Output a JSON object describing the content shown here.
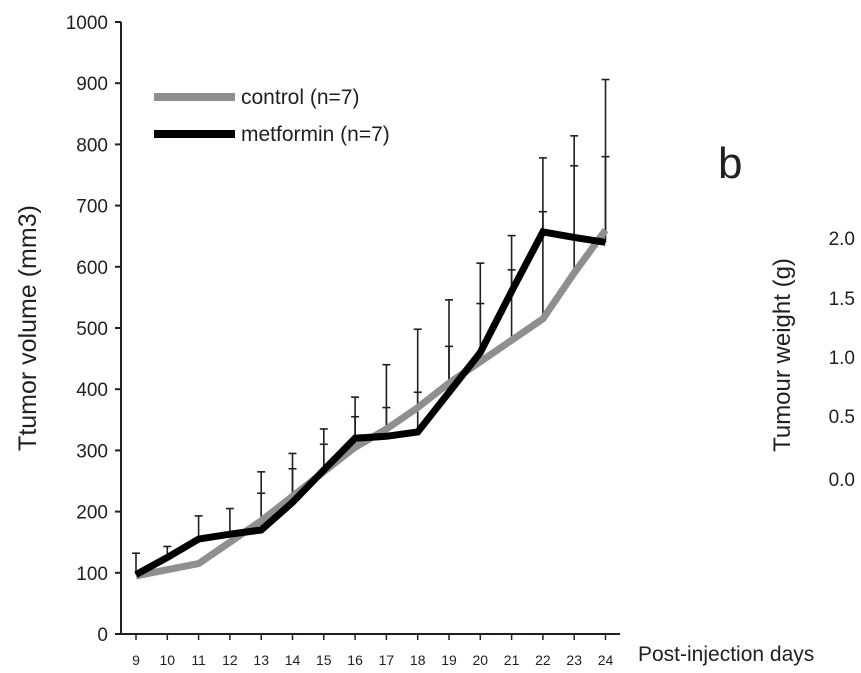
{
  "chart_data": [
    {
      "type": "line",
      "title": "",
      "xlabel": "Post-injection days",
      "ylabel": "Ttumor volume (mm3)",
      "x": [
        9,
        10,
        11,
        12,
        13,
        14,
        15,
        16,
        17,
        18,
        19,
        20,
        21,
        22,
        23,
        24
      ],
      "x_tick_labels": [
        "9",
        "10",
        "11",
        "12",
        "13",
        "14",
        "15",
        "16",
        "17",
        "18",
        "19",
        "20",
        "21",
        "22",
        "23",
        "24"
      ],
      "y_ticks": [
        0,
        100,
        200,
        300,
        400,
        500,
        600,
        700,
        800,
        900,
        1000
      ],
      "ylim": [
        0,
        1000
      ],
      "grid": false,
      "legend_position": "top-left",
      "series": [
        {
          "name": "control (n=7)",
          "color": "#8f8f8f",
          "values": [
            95,
            105,
            115,
            150,
            185,
            225,
            265,
            305,
            335,
            370,
            410,
            445,
            480,
            515,
            590,
            660
          ],
          "error_upper": [
            null,
            null,
            null,
            null,
            230,
            270,
            310,
            355,
            370,
            395,
            470,
            540,
            595,
            690,
            765,
            780
          ]
        },
        {
          "name": "metformin (n=7)",
          "color": "#000000",
          "values": [
            97,
            125,
            155,
            163,
            170,
            215,
            268,
            320,
            323,
            330,
            395,
            460,
            560,
            657,
            648,
            640
          ],
          "error_upper": [
            132,
            143,
            193,
            205,
            265,
            295,
            335,
            387,
            440,
            498,
            546,
            606,
            651,
            778,
            814,
            906
          ]
        }
      ]
    },
    {
      "type": "bar",
      "panel_label": "b",
      "ylabel": "Tumour weight (g)",
      "y_tick_labels": [
        "2.0",
        "1.5",
        "1.0",
        "0.5",
        "0.0"
      ]
    }
  ]
}
